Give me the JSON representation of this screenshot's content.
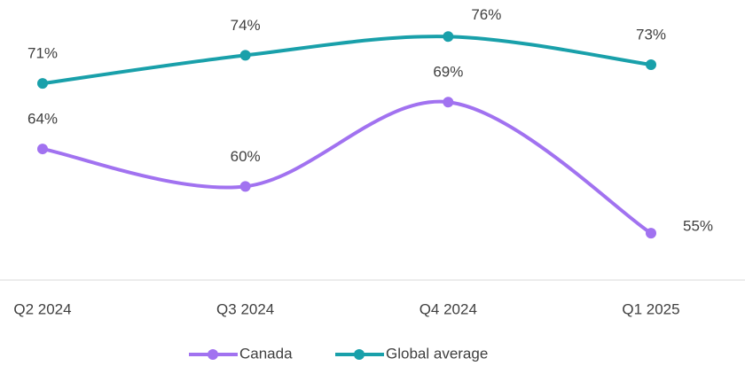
{
  "chart_data": {
    "type": "line",
    "categories": [
      "Q2 2024",
      "Q3 2024",
      "Q4 2024",
      "Q1 2025"
    ],
    "series": [
      {
        "name": "Canada",
        "color": "#a172f0",
        "values": [
          64,
          60,
          69,
          55
        ],
        "value_labels": [
          "64%",
          "60%",
          "69%",
          "55%"
        ]
      },
      {
        "name": "Global average",
        "color": "#19a0aa",
        "values": [
          71,
          74,
          76,
          73
        ],
        "value_labels": [
          "71%",
          "74%",
          "76%",
          "73%"
        ]
      }
    ],
    "ylim": [
      50,
      80
    ],
    "smooth": true,
    "legend": "bottom"
  }
}
